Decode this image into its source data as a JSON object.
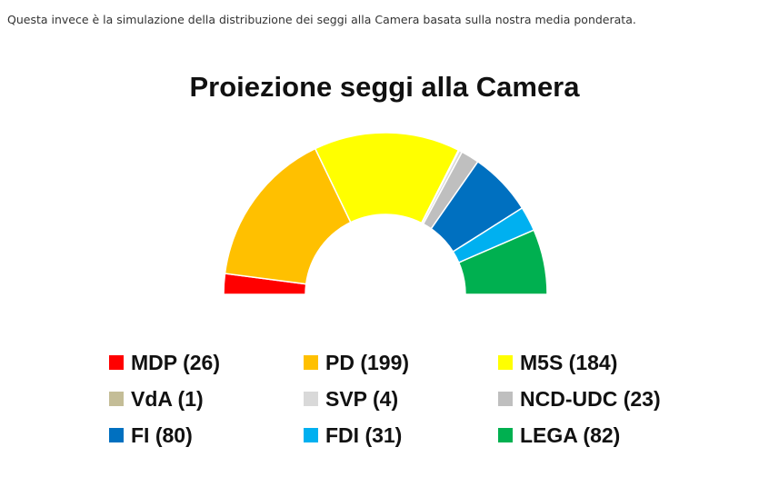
{
  "intro_text": "Questa invece è la simulazione della distribuzione dei seggi alla Camera basata sulla nostra media ponderata.",
  "chart_data": {
    "type": "pie",
    "subtype": "hemicycle",
    "title": "Proiezione seggi alla Camera",
    "total_seats": 630,
    "series": [
      {
        "name": "MDP",
        "label": "MDP (26)",
        "value": 26,
        "color": "#ff0000"
      },
      {
        "name": "PD",
        "label": "PD (199)",
        "value": 199,
        "color": "#ffc000"
      },
      {
        "name": "M5S",
        "label": "M5S (184)",
        "value": 184,
        "color": "#ffff00"
      },
      {
        "name": "VdA",
        "label": "VdA (1)",
        "value": 1,
        "color": "#c4bd97"
      },
      {
        "name": "SVP",
        "label": "SVP (4)",
        "value": 4,
        "color": "#d9d9d9"
      },
      {
        "name": "NCD-UDC",
        "label": "NCD-UDC (23)",
        "value": 23,
        "color": "#bfbfbf"
      },
      {
        "name": "FI",
        "label": "FI (80)",
        "value": 80,
        "color": "#0070c0"
      },
      {
        "name": "FDI",
        "label": "FDI (31)",
        "value": 31,
        "color": "#00b0f0"
      },
      {
        "name": "LEGA",
        "label": "LEGA (82)",
        "value": 82,
        "color": "#00b050"
      }
    ],
    "legend_placement": "bottom"
  }
}
